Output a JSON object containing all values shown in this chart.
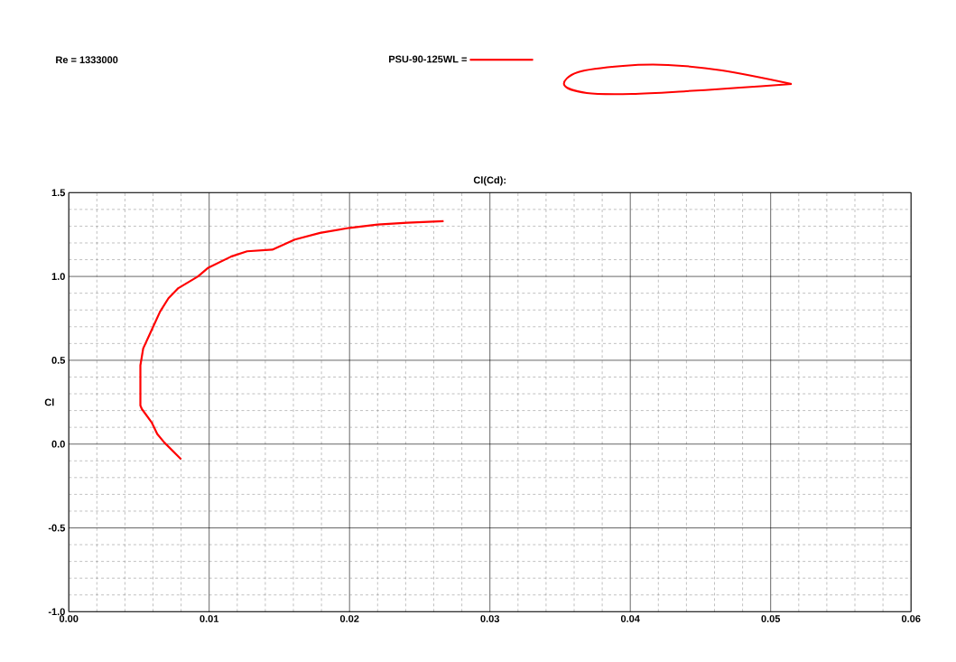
{
  "chart_data": {
    "type": "line",
    "title": "Cl(Cd):",
    "ylabel": "Cl",
    "annotations": [
      "Re = 1333000"
    ],
    "series": [
      {
        "name": "PSU-90-125WL =",
        "color": "#ff0000",
        "x": [
          0.008,
          0.0068,
          0.0063,
          0.0059,
          0.0052,
          0.0051,
          0.0051,
          0.0053,
          0.0059,
          0.0065,
          0.0071,
          0.0078,
          0.0092,
          0.0099,
          0.0116,
          0.0127,
          0.0145,
          0.0161,
          0.0179,
          0.02,
          0.022,
          0.0241,
          0.0267
        ],
        "values": [
          -0.09,
          0.01,
          0.06,
          0.13,
          0.21,
          0.23,
          0.47,
          0.57,
          0.68,
          0.79,
          0.87,
          0.93,
          1.0,
          1.05,
          1.12,
          1.15,
          1.16,
          1.22,
          1.26,
          1.29,
          1.31,
          1.32,
          1.33
        ]
      }
    ],
    "xlim": [
      0,
      0.06
    ],
    "ylim": [
      -1.0,
      1.5
    ],
    "xticks": [
      {
        "value": 0,
        "label": "0.00"
      },
      0.01,
      0.02,
      0.03,
      0.04,
      0.05,
      0.06
    ],
    "yticks": [
      {
        "value": -1.0,
        "label": "-1.0"
      },
      -0.5,
      {
        "value": 0,
        "label": "0.0"
      },
      0.5,
      {
        "value": 1.0,
        "label": "1.0"
      },
      1.5
    ],
    "grid": true,
    "legend": "top",
    "marker": "none",
    "line_style": "solid"
  }
}
